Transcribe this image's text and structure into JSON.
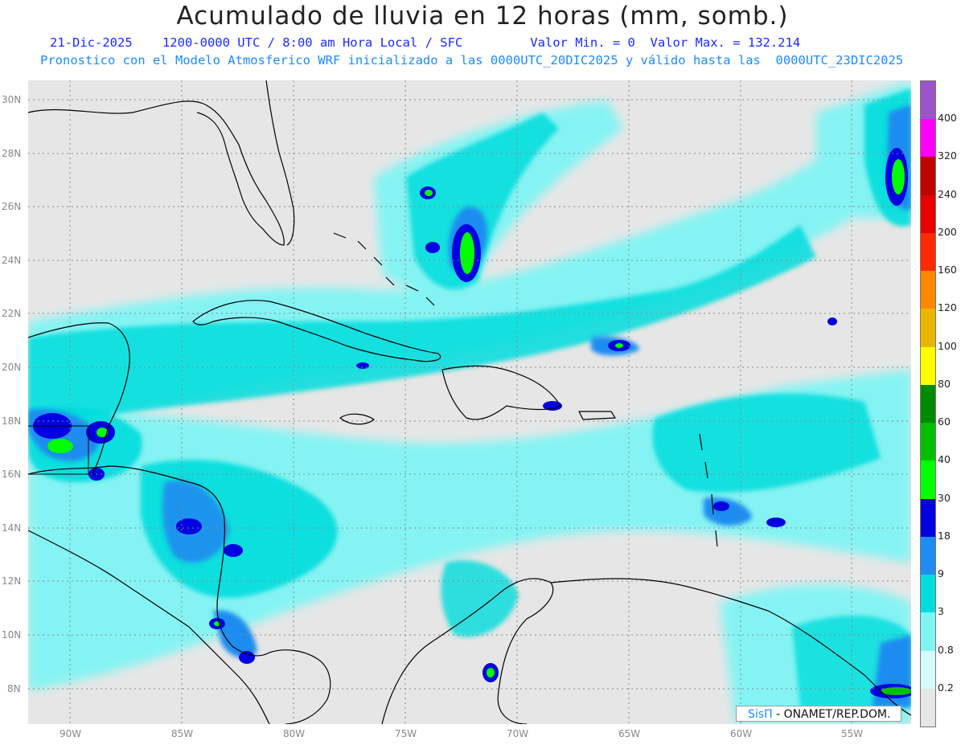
{
  "title": "Acumulado de lluvia en 12 horas (mm, somb.)",
  "subtitle_line1": "21-Dic-2025    1200-0000 UTC / 8:00 am Hora Local / SFC         Valor Min. = 0  Valor Max. = 132.214",
  "subtitle_line2": "Pronostico con el Modelo Atmosferico WRF inicializado a las 0000UTC_20DIC2025 y válido hasta las  0000UTC_23DIC2025",
  "lat_labels": [
    "30N",
    "28N",
    "26N",
    "24N",
    "22N",
    "20N",
    "18N",
    "16N",
    "14N",
    "12N",
    "10N",
    "8N"
  ],
  "lon_labels": [
    "90W",
    "85W",
    "80W",
    "75W",
    "70W",
    "65W",
    "60W",
    "55W"
  ],
  "legend": {
    "labels": [
      "400",
      "320",
      "240",
      "200",
      "160",
      "120",
      "100",
      "80",
      "60",
      "40",
      "30",
      "18",
      "9",
      "3",
      "0.8",
      "0.2"
    ],
    "colors": [
      "#9a55cc",
      "#ff00ff",
      "#c00000",
      "#e80000",
      "#ff2a00",
      "#ff8800",
      "#e8b800",
      "#ffff00",
      "#008a00",
      "#00c000",
      "#00ff00",
      "#0000e0",
      "#1e8cf0",
      "#00dcdc",
      "#80f4f4",
      "#d4fcfc",
      "#e6e6e6"
    ]
  },
  "credit": {
    "sis": "SisΠ",
    "org": "- ONAMET/REP.DOM."
  },
  "colors": {
    "ocean": "#e6e6e6",
    "coast": "#000000",
    "grid": "#888888"
  }
}
